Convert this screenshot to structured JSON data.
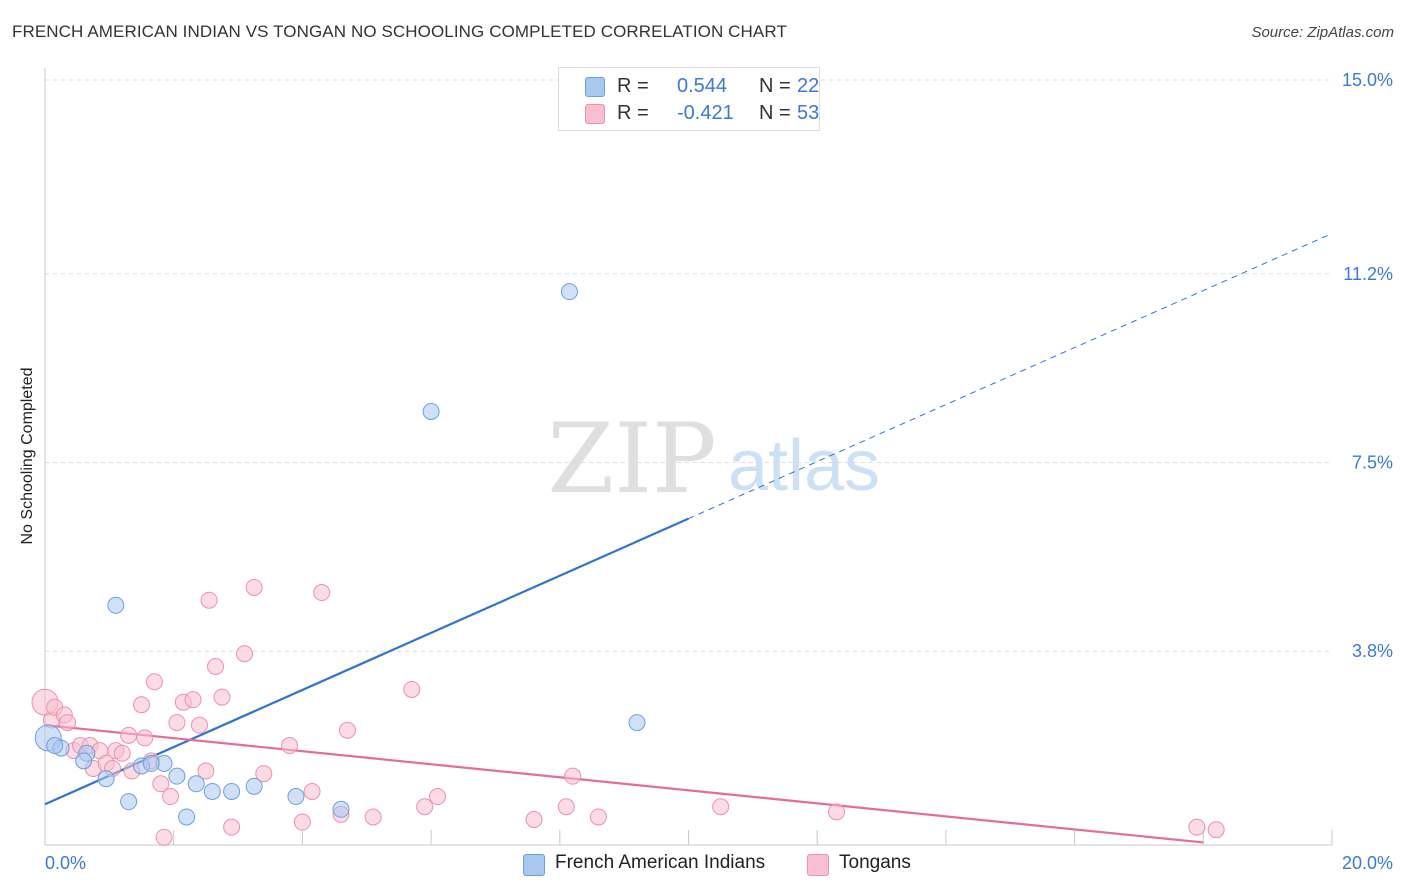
{
  "chart_data": {
    "type": "scatter",
    "title": "FRENCH AMERICAN INDIAN VS TONGAN NO SCHOOLING COMPLETED CORRELATION CHART",
    "source": "Source: ZipAtlas.com",
    "ylabel": "No Schooling Completed",
    "xlim": [
      0,
      20
    ],
    "ylim": [
      0,
      15
    ],
    "x_tick_labels": [
      "0.0%",
      "20.0%"
    ],
    "y_ticks": [
      3.8,
      7.5,
      11.2,
      15.0
    ],
    "y_tick_labels": [
      "3.8%",
      "7.5%",
      "11.2%",
      "15.0%"
    ],
    "watermark": "ZIPatlas",
    "legend_stats": [
      {
        "r_label": "R = ",
        "r_value": "0.544",
        "n_label": "N = ",
        "n_value": "22"
      },
      {
        "r_label": "R = ",
        "r_value": "-0.421",
        "n_label": "N = ",
        "n_value": "53"
      }
    ],
    "series": [
      {
        "name": "French American Indians",
        "color": "#a9c8f0",
        "stroke": "#6f9fdc",
        "line_color": "#2f74cf",
        "trend": {
          "x0": 0,
          "y0": 0.8,
          "x1": 10,
          "y1": 6.4,
          "dash_to_x": 20,
          "dash_to_y": 11.99
        },
        "points": [
          [
            0.05,
            2.1
          ],
          [
            0.25,
            1.9
          ],
          [
            0.65,
            1.8
          ],
          [
            0.6,
            1.65
          ],
          [
            0.95,
            1.3
          ],
          [
            1.1,
            4.7
          ],
          [
            1.3,
            0.85
          ],
          [
            1.5,
            1.55
          ],
          [
            1.85,
            1.6
          ],
          [
            2.05,
            1.35
          ],
          [
            2.2,
            0.55
          ],
          [
            2.35,
            1.2
          ],
          [
            2.6,
            1.05
          ],
          [
            2.9,
            1.05
          ],
          [
            3.25,
            1.15
          ],
          [
            3.9,
            0.95
          ],
          [
            4.6,
            0.7
          ],
          [
            6.0,
            8.5
          ],
          [
            8.15,
            10.85
          ],
          [
            9.2,
            2.4
          ],
          [
            1.65,
            1.6
          ],
          [
            0.15,
            1.95
          ]
        ]
      },
      {
        "name": "Tongans",
        "color": "#f7bfd0",
        "stroke": "#ee8fae",
        "line_color": "#e46c96",
        "trend": {
          "x0": 0,
          "y0": 2.35,
          "x1": 18,
          "y1": 0.05
        },
        "points": [
          [
            0.0,
            2.8
          ],
          [
            0.1,
            2.45
          ],
          [
            0.15,
            2.7
          ],
          [
            0.3,
            2.55
          ],
          [
            0.35,
            2.4
          ],
          [
            0.45,
            1.85
          ],
          [
            0.55,
            1.95
          ],
          [
            0.7,
            1.95
          ],
          [
            0.75,
            1.5
          ],
          [
            0.85,
            1.85
          ],
          [
            0.95,
            1.6
          ],
          [
            1.05,
            1.5
          ],
          [
            1.1,
            1.85
          ],
          [
            1.2,
            1.8
          ],
          [
            1.3,
            2.15
          ],
          [
            1.35,
            1.45
          ],
          [
            1.5,
            2.75
          ],
          [
            1.55,
            2.1
          ],
          [
            1.65,
            1.65
          ],
          [
            1.7,
            3.2
          ],
          [
            1.8,
            1.2
          ],
          [
            1.85,
            0.15
          ],
          [
            1.95,
            0.95
          ],
          [
            2.05,
            2.4
          ],
          [
            2.15,
            2.8
          ],
          [
            2.3,
            2.85
          ],
          [
            2.4,
            2.35
          ],
          [
            2.5,
            1.45
          ],
          [
            2.55,
            4.8
          ],
          [
            2.65,
            3.5
          ],
          [
            2.75,
            2.9
          ],
          [
            2.9,
            0.35
          ],
          [
            3.1,
            3.75
          ],
          [
            3.25,
            5.05
          ],
          [
            3.4,
            1.4
          ],
          [
            3.8,
            1.95
          ],
          [
            4.0,
            0.45
          ],
          [
            4.15,
            1.05
          ],
          [
            4.3,
            4.95
          ],
          [
            4.6,
            0.6
          ],
          [
            4.7,
            2.25
          ],
          [
            5.1,
            0.55
          ],
          [
            5.7,
            3.05
          ],
          [
            5.9,
            0.75
          ],
          [
            6.1,
            0.95
          ],
          [
            7.6,
            0.5
          ],
          [
            8.1,
            0.75
          ],
          [
            8.2,
            1.35
          ],
          [
            8.6,
            0.55
          ],
          [
            10.5,
            0.75
          ],
          [
            12.3,
            0.65
          ],
          [
            17.9,
            0.35
          ],
          [
            18.2,
            0.3
          ]
        ]
      }
    ]
  }
}
